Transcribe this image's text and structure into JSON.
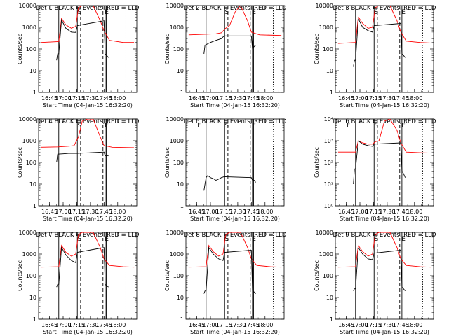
{
  "figure": {
    "xlabel": "Start Time (04-Jan-15 16:32:20)",
    "ylabel": "Counts/sec",
    "x_tick_labels": [
      "16:45",
      "17:00",
      "17:15",
      "17:30",
      "17:45",
      "18:00"
    ],
    "y_tick_labels_plain": [
      "1",
      "10",
      "100",
      "1000",
      "10000"
    ],
    "y_tick_labels_exp": [
      "10⁰",
      "10¹",
      "10²",
      "10³",
      "10⁴"
    ],
    "colors": {
      "black_series": "#000000",
      "red_series": "#ff0000"
    }
  },
  "chart_data": [
    {
      "type": "line",
      "title": "Det 1  BLACK = Events, RED = LLD",
      "region_letters": [
        "",
        "S",
        "",
        "E"
      ],
      "series": [
        {
          "name": "",
          "color": "black",
          "points": [
            [
              16.88,
              30
            ],
            [
              16.9,
              60
            ],
            [
              16.92,
              60
            ],
            [
              16.97,
              2200
            ],
            [
              17.05,
              900
            ],
            [
              17.15,
              600
            ],
            [
              17.23,
              580
            ],
            [
              17.26,
              1200
            ],
            [
              17.75,
              2000
            ],
            [
              17.77,
              60
            ],
            [
              17.8,
              50
            ],
            [
              17.83,
              40
            ]
          ]
        },
        {
          "name": "",
          "color": "red",
          "points": [
            [
              16.6,
              200
            ],
            [
              16.92,
              220
            ],
            [
              16.97,
              2600
            ],
            [
              17.05,
              1300
            ],
            [
              17.15,
              900
            ],
            [
              17.23,
              1100
            ],
            [
              17.28,
              8000
            ],
            [
              17.35,
              10000
            ],
            [
              17.55,
              10000
            ],
            [
              17.68,
              2000
            ],
            [
              17.75,
              700
            ],
            [
              17.85,
              250
            ],
            [
              18.1,
              200
            ],
            [
              18.3,
              200
            ]
          ]
        }
      ]
    },
    {
      "type": "line",
      "title": "Det 2  BLACK = Events, RED = LLD",
      "region_letters": [
        "",
        "S",
        "",
        "E"
      ],
      "series": [
        {
          "name": "",
          "color": "black",
          "points": [
            [
              16.88,
              60
            ],
            [
              16.9,
              150
            ],
            [
              17.0,
              200
            ],
            [
              17.1,
              250
            ],
            [
              17.2,
              300
            ],
            [
              17.25,
              400
            ],
            [
              17.75,
              400
            ],
            [
              17.77,
              100
            ],
            [
              17.8,
              130
            ],
            [
              17.83,
              150
            ]
          ]
        },
        {
          "name": "",
          "color": "red",
          "points": [
            [
              16.6,
              450
            ],
            [
              16.9,
              480
            ],
            [
              17.1,
              500
            ],
            [
              17.2,
              560
            ],
            [
              17.28,
              900
            ],
            [
              17.35,
              1200
            ],
            [
              17.45,
              5000
            ],
            [
              17.55,
              10000
            ],
            [
              17.68,
              2000
            ],
            [
              17.75,
              600
            ],
            [
              17.9,
              450
            ],
            [
              18.3,
              420
            ]
          ]
        }
      ]
    },
    {
      "type": "line",
      "title": "Det 3  BLACK = Events, RED = LLD",
      "region_letters": [
        "",
        "S",
        "",
        "E"
      ],
      "series": [
        {
          "name": "",
          "color": "black",
          "points": [
            [
              16.88,
              15
            ],
            [
              16.9,
              30
            ],
            [
              16.92,
              30
            ],
            [
              16.97,
              2500
            ],
            [
              17.05,
              1000
            ],
            [
              17.15,
              700
            ],
            [
              17.23,
              600
            ],
            [
              17.26,
              1200
            ],
            [
              17.75,
              1500
            ],
            [
              17.77,
              60
            ],
            [
              17.8,
              50
            ],
            [
              17.83,
              40
            ]
          ]
        },
        {
          "name": "",
          "color": "red",
          "points": [
            [
              16.6,
              180
            ],
            [
              16.92,
              200
            ],
            [
              16.97,
              3000
            ],
            [
              17.05,
              1500
            ],
            [
              17.15,
              900
            ],
            [
              17.23,
              1000
            ],
            [
              17.28,
              8000
            ],
            [
              17.35,
              10000
            ],
            [
              17.55,
              10000
            ],
            [
              17.68,
              2000
            ],
            [
              17.75,
              600
            ],
            [
              17.85,
              230
            ],
            [
              18.1,
              200
            ],
            [
              18.3,
              190
            ]
          ]
        }
      ]
    },
    {
      "type": "line",
      "title": "Det 4  BLACK = Events, RED = LLD",
      "region_letters": [
        "",
        "S",
        "",
        "E"
      ],
      "series": [
        {
          "name": "",
          "color": "black",
          "points": [
            [
              16.88,
              100
            ],
            [
              16.9,
              240
            ],
            [
              17.0,
              250
            ],
            [
              17.1,
              260
            ],
            [
              17.25,
              260
            ],
            [
              17.75,
              300
            ],
            [
              17.77,
              200
            ],
            [
              17.8,
              210
            ],
            [
              17.83,
              200
            ]
          ]
        },
        {
          "name": "",
          "color": "red",
          "points": [
            [
              16.6,
              500
            ],
            [
              16.9,
              520
            ],
            [
              17.1,
              560
            ],
            [
              17.2,
              600
            ],
            [
              17.28,
              1500
            ],
            [
              17.35,
              8000
            ],
            [
              17.45,
              10000
            ],
            [
              17.55,
              10000
            ],
            [
              17.68,
              1500
            ],
            [
              17.75,
              600
            ],
            [
              17.9,
              500
            ],
            [
              18.3,
              480
            ]
          ]
        }
      ]
    },
    {
      "type": "line",
      "title": "Det 5  BLACK = Events, RED = LLD",
      "region_letters": [
        "F",
        "S",
        "",
        "E"
      ],
      "series": [
        {
          "name": "",
          "color": "black",
          "points": [
            [
              16.88,
              5
            ],
            [
              16.9,
              10
            ],
            [
              16.92,
              20
            ],
            [
              16.95,
              25
            ],
            [
              17.0,
              20
            ],
            [
              17.05,
              18
            ],
            [
              17.1,
              15
            ],
            [
              17.15,
              17
            ],
            [
              17.2,
              20
            ],
            [
              17.25,
              22
            ],
            [
              17.75,
              20
            ],
            [
              17.77,
              15
            ],
            [
              17.8,
              15
            ],
            [
              17.83,
              12
            ]
          ]
        }
      ]
    },
    {
      "type": "line",
      "title": "Det 6  BLACK = Events, RED = LLD",
      "region_letters": [
        "F",
        "S",
        "",
        "E"
      ],
      "series": [
        {
          "name": "",
          "color": "black",
          "points": [
            [
              16.88,
              10
            ],
            [
              16.9,
              50
            ],
            [
              16.92,
              50
            ],
            [
              16.97,
              1000
            ],
            [
              17.05,
              700
            ],
            [
              17.15,
              600
            ],
            [
              17.23,
              550
            ],
            [
              17.26,
              700
            ],
            [
              17.75,
              800
            ],
            [
              17.77,
              40
            ],
            [
              17.8,
              30
            ],
            [
              17.83,
              20
            ]
          ]
        },
        {
          "name": "",
          "color": "red",
          "points": [
            [
              16.6,
              300
            ],
            [
              16.92,
              300
            ],
            [
              16.97,
              1000
            ],
            [
              17.05,
              800
            ],
            [
              17.15,
              700
            ],
            [
              17.23,
              700
            ],
            [
              17.28,
              900
            ],
            [
              17.35,
              1000
            ],
            [
              17.45,
              8000
            ],
            [
              17.55,
              10000
            ],
            [
              17.68,
              3000
            ],
            [
              17.75,
              800
            ],
            [
              17.85,
              300
            ],
            [
              18.1,
              280
            ],
            [
              18.3,
              270
            ]
          ]
        }
      ]
    },
    {
      "type": "line",
      "title": "Det 7  BLACK = Events, RED = LLD",
      "region_letters": [
        "",
        "S",
        "",
        "E"
      ],
      "series": [
        {
          "name": "",
          "color": "black",
          "points": [
            [
              16.88,
              30
            ],
            [
              16.9,
              40
            ],
            [
              16.92,
              40
            ],
            [
              16.97,
              2000
            ],
            [
              17.05,
              900
            ],
            [
              17.15,
              500
            ],
            [
              17.23,
              400
            ],
            [
              17.26,
              1200
            ],
            [
              17.75,
              2000
            ],
            [
              17.77,
              40
            ],
            [
              17.8,
              35
            ],
            [
              17.83,
              30
            ]
          ]
        },
        {
          "name": "",
          "color": "red",
          "points": [
            [
              16.6,
              250
            ],
            [
              16.92,
              260
            ],
            [
              16.97,
              2500
            ],
            [
              17.05,
              1200
            ],
            [
              17.15,
              800
            ],
            [
              17.23,
              1000
            ],
            [
              17.28,
              8000
            ],
            [
              17.35,
              10000
            ],
            [
              17.55,
              10000
            ],
            [
              17.68,
              2000
            ],
            [
              17.75,
              600
            ],
            [
              17.85,
              300
            ],
            [
              18.1,
              260
            ],
            [
              18.3,
              250
            ]
          ]
        }
      ]
    },
    {
      "type": "line",
      "title": "Det 8  BLACK = Events, RED = LLD",
      "region_letters": [
        "",
        "S",
        "",
        "E"
      ],
      "series": [
        {
          "name": "",
          "color": "black",
          "points": [
            [
              16.88,
              15
            ],
            [
              16.9,
              20
            ],
            [
              16.92,
              20
            ],
            [
              16.97,
              2000
            ],
            [
              17.05,
              1000
            ],
            [
              17.15,
              600
            ],
            [
              17.23,
              500
            ],
            [
              17.26,
              1200
            ],
            [
              17.75,
              1500
            ],
            [
              17.77,
              20
            ],
            [
              17.8,
              18
            ],
            [
              17.83,
              15
            ]
          ]
        },
        {
          "name": "",
          "color": "red",
          "points": [
            [
              16.6,
              250
            ],
            [
              16.92,
              260
            ],
            [
              16.97,
              2500
            ],
            [
              17.05,
              1300
            ],
            [
              17.15,
              800
            ],
            [
              17.23,
              1000
            ],
            [
              17.28,
              8000
            ],
            [
              17.35,
              10000
            ],
            [
              17.55,
              10000
            ],
            [
              17.68,
              2000
            ],
            [
              17.75,
              600
            ],
            [
              17.85,
              300
            ],
            [
              18.1,
              260
            ],
            [
              18.3,
              250
            ]
          ]
        }
      ]
    },
    {
      "type": "line",
      "title": "Det 9  BLACK = Events, RED = LLD",
      "region_letters": [
        "",
        "S",
        "",
        "E"
      ],
      "series": [
        {
          "name": "",
          "color": "black",
          "points": [
            [
              16.88,
              20
            ],
            [
              16.9,
              25
            ],
            [
              16.92,
              25
            ],
            [
              16.97,
              2000
            ],
            [
              17.05,
              1000
            ],
            [
              17.15,
              600
            ],
            [
              17.23,
              550
            ],
            [
              17.26,
              1100
            ],
            [
              17.75,
              1500
            ],
            [
              17.77,
              30
            ],
            [
              17.8,
              25
            ],
            [
              17.83,
              20
            ]
          ]
        },
        {
          "name": "",
          "color": "red",
          "points": [
            [
              16.6,
              250
            ],
            [
              16.92,
              260
            ],
            [
              16.97,
              2500
            ],
            [
              17.05,
              1300
            ],
            [
              17.15,
              800
            ],
            [
              17.23,
              1000
            ],
            [
              17.28,
              8000
            ],
            [
              17.35,
              10000
            ],
            [
              17.55,
              10000
            ],
            [
              17.68,
              2000
            ],
            [
              17.75,
              600
            ],
            [
              17.85,
              300
            ],
            [
              18.1,
              260
            ],
            [
              18.3,
              250
            ]
          ]
        }
      ]
    }
  ]
}
